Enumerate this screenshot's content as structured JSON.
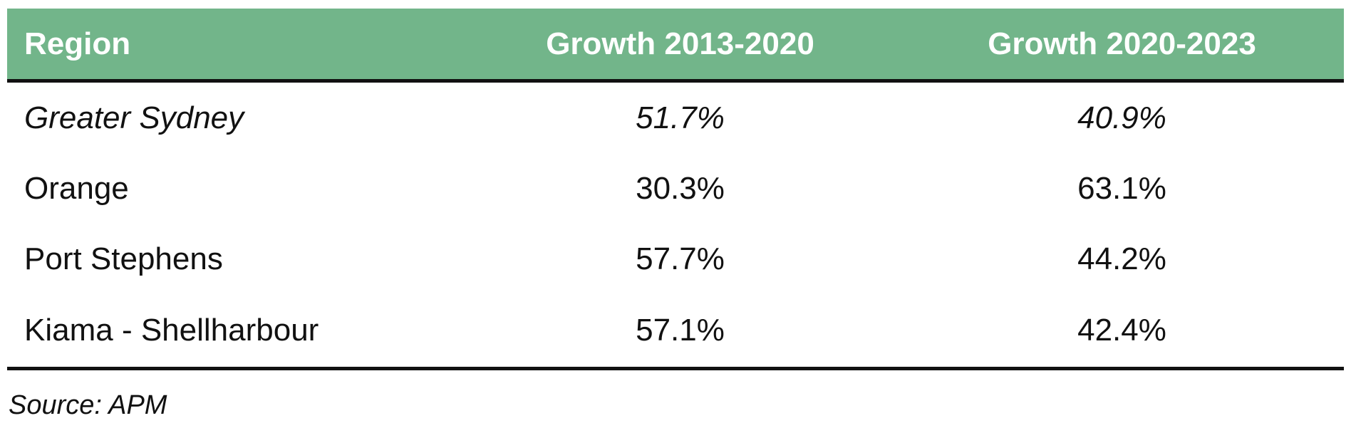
{
  "table": {
    "headers": {
      "region": "Region",
      "growth_2013_2020": "Growth 2013-2020",
      "growth_2020_2023": "Growth 2020-2023"
    },
    "rows": [
      {
        "region": "Greater Sydney",
        "growth_2013_2020": "51.7%",
        "growth_2020_2023": "40.9%"
      },
      {
        "region": "Orange",
        "growth_2013_2020": "30.3%",
        "growth_2020_2023": "63.1%"
      },
      {
        "region": "Port Stephens",
        "growth_2013_2020": "57.7%",
        "growth_2020_2023": "44.2%"
      },
      {
        "region": "Kiama - Shellharbour",
        "growth_2013_2020": "57.1%",
        "growth_2020_2023": "42.4%"
      }
    ],
    "header_color": "#72b58a"
  },
  "source": "Source: APM"
}
